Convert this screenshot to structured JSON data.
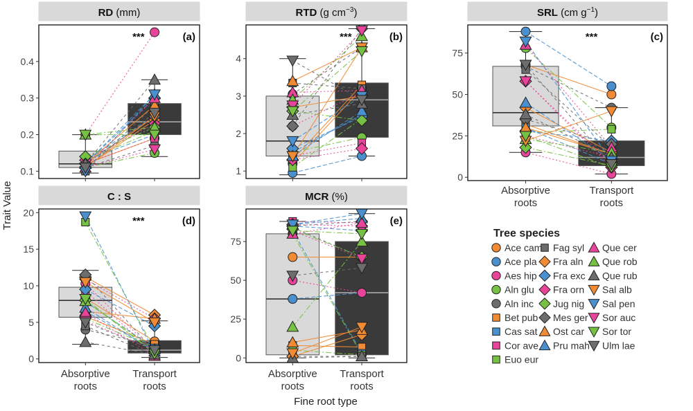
{
  "figure": {
    "y_axis_label": "Trait Value",
    "x_axis_label": "Fine root type",
    "significance_marker": "***",
    "categories": [
      "Absorptive roots",
      "Transport roots"
    ],
    "legend_title": "Tree species",
    "species": [
      {
        "name": "Ace cam",
        "color": "#f08a33",
        "shape": "circle"
      },
      {
        "name": "Ace pla",
        "color": "#4a90cf",
        "shape": "circle"
      },
      {
        "name": "Aes hip",
        "color": "#e8449a",
        "shape": "circle"
      },
      {
        "name": "Aln glu",
        "color": "#76c043",
        "shape": "circle"
      },
      {
        "name": "Aln inc",
        "color": "#6d6d6d",
        "shape": "circle"
      },
      {
        "name": "Bet pub",
        "color": "#f08a33",
        "shape": "square"
      },
      {
        "name": "Cas sat",
        "color": "#4a90cf",
        "shape": "square"
      },
      {
        "name": "Cor ave",
        "color": "#e8449a",
        "shape": "square"
      },
      {
        "name": "Euo eur",
        "color": "#76c043",
        "shape": "square"
      },
      {
        "name": "Fag syl",
        "color": "#6d6d6d",
        "shape": "square"
      },
      {
        "name": "Fra aln",
        "color": "#f08a33",
        "shape": "diamond"
      },
      {
        "name": "Fra exc",
        "color": "#4a90cf",
        "shape": "diamond"
      },
      {
        "name": "Fra orn",
        "color": "#e8449a",
        "shape": "diamond"
      },
      {
        "name": "Jug nig",
        "color": "#76c043",
        "shape": "diamond"
      },
      {
        "name": "Mes ger",
        "color": "#6d6d6d",
        "shape": "diamond"
      },
      {
        "name": "Ost car",
        "color": "#f08a33",
        "shape": "triangle-up"
      },
      {
        "name": "Pru mah",
        "color": "#4a90cf",
        "shape": "triangle-up"
      },
      {
        "name": "Que cer",
        "color": "#e8449a",
        "shape": "triangle-up"
      },
      {
        "name": "Que rob",
        "color": "#76c043",
        "shape": "triangle-up"
      },
      {
        "name": "Que rub",
        "color": "#6d6d6d",
        "shape": "triangle-up"
      },
      {
        "name": "Sal alb",
        "color": "#f08a33",
        "shape": "triangle-down"
      },
      {
        "name": "Sal pen",
        "color": "#4a90cf",
        "shape": "triangle-down"
      },
      {
        "name": "Sor auc",
        "color": "#e8449a",
        "shape": "triangle-down"
      },
      {
        "name": "Sor tor",
        "color": "#76c043",
        "shape": "triangle-down"
      },
      {
        "name": "Ulm lae",
        "color": "#6d6d6d",
        "shape": "triangle-down"
      }
    ]
  },
  "chart_data": [
    {
      "type": "box-paired-scatter",
      "title_html": "RD (mm)",
      "title_text": "RD",
      "title_unit": "(mm)",
      "panel_label": "(a)",
      "ylim": [
        0.08,
        0.5
      ],
      "yticks": [
        0.1,
        0.2,
        0.3,
        0.4
      ],
      "ytick_labels": [
        "0.1",
        "0.2",
        "0.3",
        "0.4"
      ],
      "box": {
        "absorptive": {
          "min": 0.095,
          "q1": 0.11,
          "median": 0.12,
          "q3": 0.155,
          "max": 0.2
        },
        "transport": {
          "min": 0.14,
          "q1": 0.2,
          "median": 0.235,
          "q3": 0.285,
          "max": 0.35
        }
      },
      "absorptive": [
        0.12,
        0.13,
        0.2,
        0.11,
        0.11,
        0.12,
        0.13,
        0.12,
        0.13,
        0.1,
        0.11,
        0.12,
        0.13,
        0.14,
        0.12,
        0.12,
        0.12,
        0.11,
        0.2,
        0.12,
        0.11,
        0.1,
        0.11,
        0.2,
        0.11
      ],
      "transport": [
        0.19,
        0.25,
        0.48,
        0.15,
        0.17,
        0.25,
        0.2,
        0.19,
        0.21,
        0.28,
        0.24,
        0.3,
        0.23,
        0.22,
        0.25,
        0.28,
        0.31,
        0.3,
        0.22,
        0.35,
        0.25,
        0.31,
        0.16,
        0.2,
        0.26
      ]
    },
    {
      "type": "box-paired-scatter",
      "title_text": "RTD",
      "title_unit": "(g cm",
      "title_sup": "−3",
      "title_close": ")",
      "panel_label": "(b)",
      "ylim": [
        0.8,
        4.9
      ],
      "yticks": [
        1,
        2,
        3,
        4
      ],
      "ytick_labels": [
        "1",
        "2",
        "3",
        "4"
      ],
      "box": {
        "absorptive": {
          "min": 0.9,
          "q1": 1.4,
          "median": 1.8,
          "q3": 3.0,
          "max": 4.0
        },
        "transport": {
          "min": 1.4,
          "q1": 1.9,
          "median": 2.9,
          "q3": 3.35,
          "max": 4.8
        }
      },
      "absorptive": [
        1.2,
        0.95,
        2.2,
        1.5,
        3.05,
        1.3,
        1.5,
        1.4,
        1.1,
        3.35,
        2.7,
        1.6,
        1.3,
        2.6,
        2.2,
        3.4,
        1.4,
        3.1,
        2.9,
        2.5,
        1.4,
        1.8,
        2.75,
        2.6,
        3.95
      ],
      "transport": [
        3.2,
        1.4,
        3.1,
        1.9,
        4.3,
        3.3,
        2.5,
        1.75,
        2.4,
        3.2,
        3.0,
        2.45,
        1.6,
        2.35,
        4.8,
        4.3,
        2.6,
        3.15,
        4.6,
        2.8,
        4.3,
        3.0,
        4.75,
        4.2,
        2.9
      ]
    },
    {
      "type": "box-paired-scatter",
      "title_text": "SRL",
      "title_unit": "(cm g",
      "title_sup": "−1",
      "title_close": ")",
      "panel_label": "(c)",
      "ylim": [
        -2,
        92
      ],
      "yticks": [
        0,
        25,
        50,
        75
      ],
      "ytick_labels": [
        "0",
        "25",
        "50",
        "75"
      ],
      "box": {
        "absorptive": {
          "min": 15,
          "q1": 31,
          "median": 39,
          "q3": 67,
          "max": 88
        },
        "transport": {
          "min": 2,
          "q1": 7,
          "median": 12,
          "q3": 22,
          "max": 42
        }
      },
      "absorptive": [
        68,
        88,
        15,
        78,
        67,
        32,
        30,
        25,
        27,
        65,
        42,
        28,
        58,
        18,
        35,
        30,
        45,
        80,
        23,
        38,
        22,
        82,
        58,
        25,
        68
      ],
      "transport": [
        50,
        55,
        2,
        30,
        42,
        14,
        8,
        12,
        29,
        18,
        15,
        22,
        6,
        7,
        20,
        14,
        10,
        18,
        15,
        12,
        40,
        10,
        8,
        6,
        8
      ]
    },
    {
      "type": "box-paired-scatter",
      "title_text": "C : S",
      "title_unit": "",
      "panel_label": "(d)",
      "ylim": [
        -0.5,
        20.5
      ],
      "yticks": [
        0,
        5,
        10,
        15,
        20
      ],
      "ytick_labels": [
        "0",
        "5",
        "10",
        "15",
        "20"
      ],
      "box": {
        "absorptive": {
          "min": 2,
          "q1": 5.7,
          "median": 8,
          "q3": 9.8,
          "max": 12.1
        },
        "transport": {
          "min": 0.2,
          "q1": 0.8,
          "median": 1.2,
          "q3": 2.5,
          "max": 5.2
        }
      },
      "absorptive": [
        8.3,
        6.5,
        10.3,
        5.5,
        4.0,
        5.8,
        7.8,
        9.3,
        18.7,
        4.5,
        11.2,
        9.5,
        10.9,
        8.0,
        11.5,
        6.5,
        7.0,
        6.3,
        7.9,
        2.3,
        10.5,
        19.5,
        5.2,
        8.2,
        5.0
      ],
      "transport": [
        2.4,
        1.2,
        1.0,
        1.5,
        1.8,
        2.0,
        1.5,
        0.8,
        1.3,
        0.5,
        6.0,
        4.5,
        5.5,
        0.9,
        1.0,
        5.5,
        1.0,
        0.4,
        1.3,
        0.6,
        5.0,
        0.8,
        1.2,
        0.7,
        1.2
      ]
    },
    {
      "type": "box-paired-scatter",
      "title_text": "MCR",
      "title_unit": "(%)",
      "panel_label": "(e)",
      "ylim": [
        -3,
        96
      ],
      "yticks": [
        0,
        25,
        50,
        75
      ],
      "ytick_labels": [
        "0",
        "25",
        "50",
        "75"
      ],
      "box": {
        "absorptive": {
          "min": 0,
          "q1": 2,
          "median": 38,
          "q3": 80,
          "max": 88
        },
        "transport": {
          "min": 0,
          "q1": 2,
          "median": 42,
          "q3": 75,
          "max": 93
        }
      },
      "absorptive": [
        65,
        38,
        50,
        80,
        84,
        8,
        82,
        88,
        5,
        1,
        1,
        85,
        86,
        83,
        85,
        10,
        86,
        80,
        20,
        0,
        3,
        86,
        82,
        82,
        53
      ],
      "transport": [
        65,
        42,
        42,
        2,
        65,
        7,
        3,
        87,
        2,
        1,
        15,
        82,
        85,
        65,
        88,
        18,
        90,
        87,
        75,
        1,
        20,
        93,
        64,
        80,
        58
      ]
    }
  ]
}
